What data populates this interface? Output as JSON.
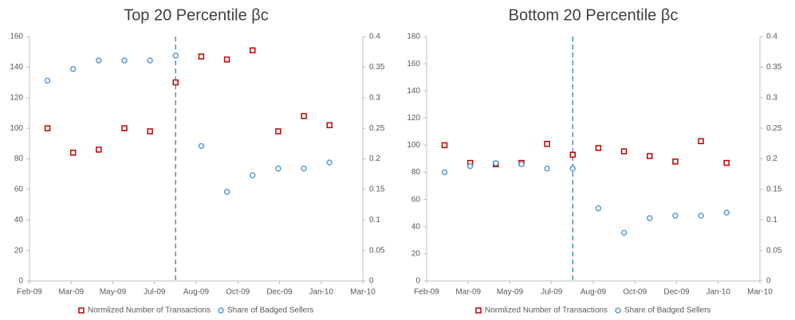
{
  "chart_data": [
    {
      "type": "scatter",
      "title": "Top 20 Percentile βc",
      "x": [
        0.7,
        1.7,
        2.7,
        3.7,
        4.7,
        5.7,
        6.7,
        7.7,
        8.7,
        9.7,
        10.7,
        11.7
      ],
      "xlim": [
        0,
        13
      ],
      "xticks": [
        {
          "value": 0,
          "label": "Feb-09"
        },
        {
          "value": 1.625,
          "label": "Mar-09"
        },
        {
          "value": 3.25,
          "label": "May-09"
        },
        {
          "value": 4.875,
          "label": "Jul-09"
        },
        {
          "value": 6.5,
          "label": "Aug-09"
        },
        {
          "value": 8.125,
          "label": "Oct-09"
        },
        {
          "value": 9.75,
          "label": "Dec-09"
        },
        {
          "value": 11.375,
          "label": "Jan-10"
        },
        {
          "value": 13,
          "label": "Mar-10"
        }
      ],
      "ylim": [
        0,
        160
      ],
      "yticks": [
        0,
        20,
        40,
        60,
        80,
        100,
        120,
        140,
        160
      ],
      "y2lim": [
        0,
        0.4
      ],
      "y2ticks": [
        0,
        0.05,
        0.1,
        0.15,
        0.2,
        0.25,
        0.3,
        0.35,
        0.4
      ],
      "vline": 5.7,
      "series": [
        {
          "name": "Normlized Number of Transactions",
          "color": "#c00000",
          "marker": "square",
          "values": [
            100,
            84,
            86,
            100,
            98,
            130,
            147,
            145,
            151,
            98,
            108,
            102
          ]
        },
        {
          "name": "Share of Badged Sellers",
          "color": "#5b9bd5",
          "marker": "circle",
          "axis": "y2",
          "values": [
            0.328,
            0.347,
            0.361,
            0.361,
            0.361,
            0.369,
            0.221,
            0.146,
            0.173,
            0.184,
            0.184,
            0.194
          ]
        }
      ]
    },
    {
      "type": "scatter",
      "title": "Bottom 20 Percentile βc",
      "x": [
        0.7,
        1.7,
        2.7,
        3.7,
        4.7,
        5.7,
        6.7,
        7.7,
        8.7,
        9.7,
        10.7,
        11.7
      ],
      "xlim": [
        0,
        13
      ],
      "xticks": [
        {
          "value": 0,
          "label": "Feb-09"
        },
        {
          "value": 1.625,
          "label": "Mar-09"
        },
        {
          "value": 3.25,
          "label": "May-09"
        },
        {
          "value": 4.875,
          "label": "Jul-09"
        },
        {
          "value": 6.5,
          "label": "Aug-09"
        },
        {
          "value": 8.125,
          "label": "Oct-09"
        },
        {
          "value": 9.75,
          "label": "Dec-09"
        },
        {
          "value": 11.375,
          "label": "Jan-10"
        },
        {
          "value": 13,
          "label": "Mar-10"
        }
      ],
      "ylim": [
        0,
        180
      ],
      "yticks": [
        0,
        20,
        40,
        60,
        80,
        100,
        120,
        140,
        160,
        180
      ],
      "y2lim": [
        0,
        0.4
      ],
      "y2ticks": [
        0,
        0.05,
        0.1,
        0.15,
        0.2,
        0.25,
        0.3,
        0.35,
        0.4
      ],
      "vline": 5.7,
      "series": [
        {
          "name": "Normlized Number of Transactions",
          "color": "#c00000",
          "marker": "square",
          "values": [
            100,
            87,
            86,
            87,
            101,
            93,
            98,
            95.5,
            92,
            88,
            103,
            87
          ]
        },
        {
          "name": "Share of Badged Sellers",
          "color": "#5b9bd5",
          "marker": "circle",
          "axis": "y2",
          "values": [
            0.178,
            0.188,
            0.193,
            0.191,
            0.184,
            0.184,
            0.119,
            0.079,
            0.103,
            0.107,
            0.107,
            0.112
          ]
        }
      ]
    }
  ]
}
